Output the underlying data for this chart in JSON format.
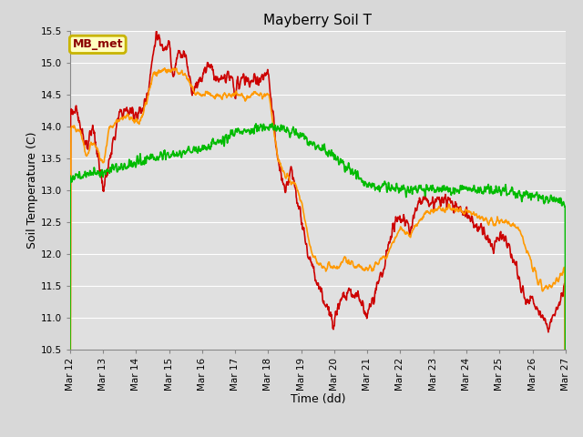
{
  "title": "Mayberry Soil T",
  "xlabel": "Time (dd)",
  "ylabel": "Soil Temperature (C)",
  "ylim": [
    10.5,
    15.5
  ],
  "xlim": [
    12,
    27
  ],
  "xtick_labels": [
    "Mar 12",
    "Mar 13",
    "Mar 14",
    "Mar 15",
    "Mar 16",
    "Mar 17",
    "Mar 18",
    "Mar 19",
    "Mar 20",
    "Mar 21",
    "Mar 22",
    "Mar 23",
    "Mar 24",
    "Mar 25",
    "Mar 26",
    "Mar 27"
  ],
  "xtick_positions": [
    12,
    13,
    14,
    15,
    16,
    17,
    18,
    19,
    20,
    21,
    22,
    23,
    24,
    25,
    26,
    27
  ],
  "ytick_positions": [
    10.5,
    11.0,
    11.5,
    12.0,
    12.5,
    13.0,
    13.5,
    14.0,
    14.5,
    15.0,
    15.5
  ],
  "legend_label": "MB_met",
  "legend_box_color": "#c8b400",
  "legend_box_bg": "#ffffc0",
  "top_color": "#cc0000",
  "middle_color": "#ff9900",
  "bottom_color": "#00bb00",
  "bg_color": "#e0e0e0",
  "grid_color": "#ffffff",
  "title_fontsize": 11,
  "axis_fontsize": 9,
  "tick_fontsize": 7.5,
  "line_width": 1.2
}
